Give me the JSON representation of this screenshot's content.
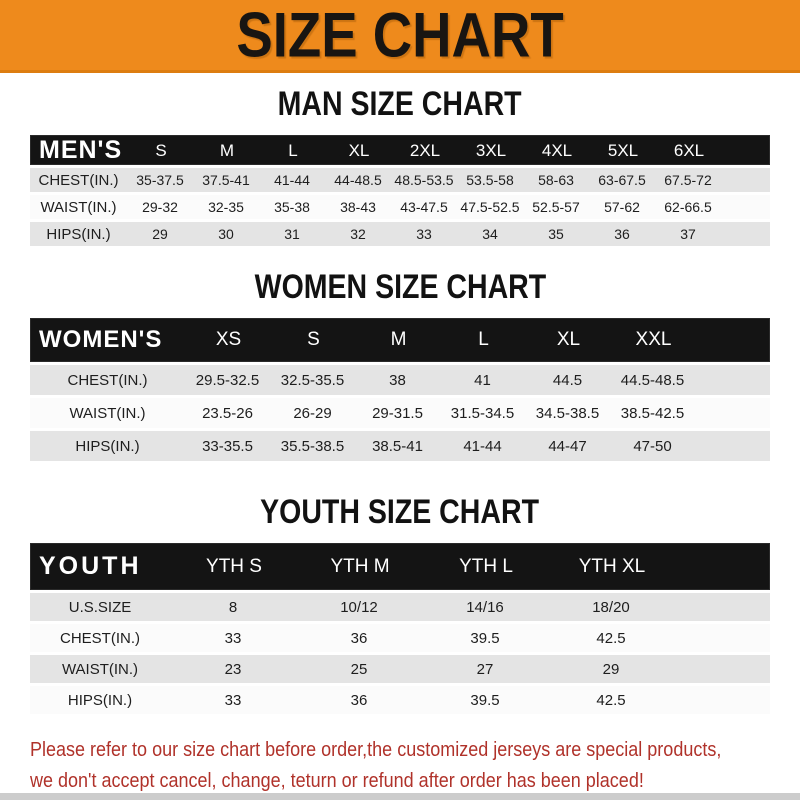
{
  "banner": {
    "title": "SIZE CHART",
    "bg_color": "#ee8a1c",
    "text_color": "#181512"
  },
  "chart_data": [
    {
      "type": "table",
      "title": "MAN SIZE CHART",
      "header_label": "MEN'S",
      "columns": [
        "S",
        "M",
        "L",
        "XL",
        "2XL",
        "3XL",
        "4XL",
        "5XL",
        "6XL"
      ],
      "rows": [
        {
          "label": "CHEST(IN.)",
          "values": [
            "35-37.5",
            "37.5-41",
            "41-44",
            "44-48.5",
            "48.5-53.5",
            "53.5-58",
            "58-63",
            "63-67.5",
            "67.5-72"
          ]
        },
        {
          "label": "WAIST(IN.)",
          "values": [
            "29-32",
            "32-35",
            "35-38",
            "38-43",
            "43-47.5",
            "47.5-52.5",
            "52.5-57",
            "57-62",
            "62-66.5"
          ]
        },
        {
          "label": "HIPS(IN.)",
          "values": [
            "29",
            "30",
            "31",
            "32",
            "33",
            "34",
            "35",
            "36",
            "37"
          ]
        }
      ]
    },
    {
      "type": "table",
      "title": "WOMEN SIZE CHART",
      "header_label": "WOMEN'S",
      "columns": [
        "XS",
        "S",
        "M",
        "L",
        "XL",
        "XXL"
      ],
      "rows": [
        {
          "label": "CHEST(IN.)",
          "values": [
            "29.5-32.5",
            "32.5-35.5",
            "38",
            "41",
            "44.5",
            "44.5-48.5"
          ]
        },
        {
          "label": "WAIST(IN.)",
          "values": [
            "23.5-26",
            "26-29",
            "29-31.5",
            "31.5-34.5",
            "34.5-38.5",
            "38.5-42.5"
          ]
        },
        {
          "label": "HIPS(IN.)",
          "values": [
            "33-35.5",
            "35.5-38.5",
            "38.5-41",
            "41-44",
            "44-47",
            "47-50"
          ]
        }
      ]
    },
    {
      "type": "table",
      "title": "YOUTH SIZE CHART",
      "header_label": "YOUTH",
      "columns": [
        "YTH S",
        "YTH M",
        "YTH L",
        "YTH XL"
      ],
      "rows": [
        {
          "label": "U.S.SIZE",
          "values": [
            "8",
            "10/12",
            "14/16",
            "18/20"
          ]
        },
        {
          "label": "CHEST(IN.)",
          "values": [
            "33",
            "36",
            "39.5",
            "42.5"
          ]
        },
        {
          "label": "WAIST(IN.)",
          "values": [
            "23",
            "25",
            "27",
            "29"
          ]
        },
        {
          "label": "HIPS(IN.)",
          "values": [
            "33",
            "36",
            "39.5",
            "42.5"
          ]
        }
      ]
    }
  ],
  "footer": {
    "line1": "Please refer to our size chart before order,the customized jerseys are special products,",
    "line2": "we don't accept cancel, change, teturn or refund after order has been placed!",
    "text_color": "#b0322a"
  },
  "colors": {
    "banner_orange": "#ee8a1c",
    "header_bar_black": "#141414",
    "row_gray": "#e4e4e4",
    "row_white": "#fbfbfb",
    "disclaimer_red": "#b0322a",
    "bottom_strip_gray": "#cccccc"
  }
}
